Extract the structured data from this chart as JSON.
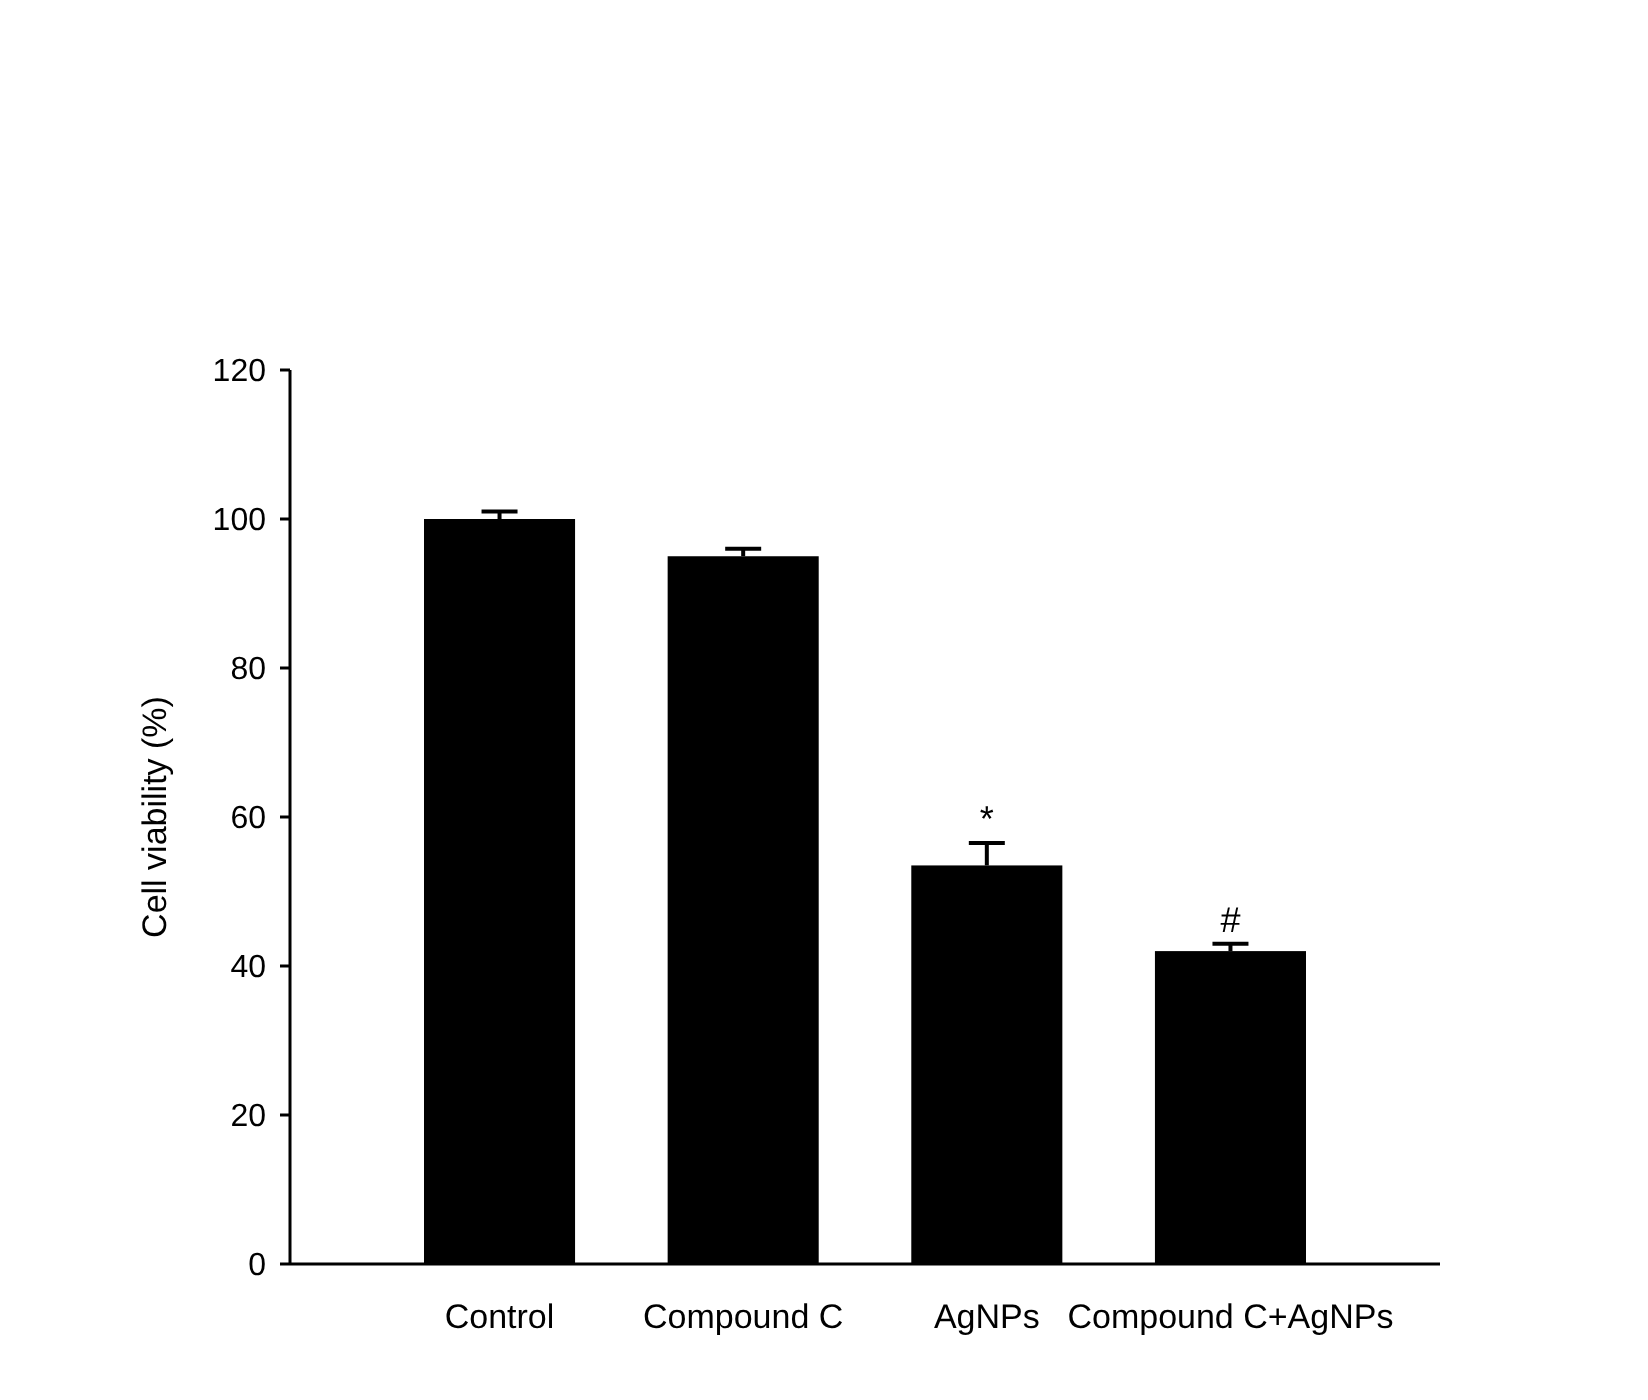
{
  "chart_data": {
    "type": "bar",
    "ylabel": "Cell viability (%)",
    "categories": [
      "Control",
      "Compound C",
      "AgNPs",
      "Compound C+AgNPs"
    ],
    "values": [
      100,
      95,
      53.5,
      42
    ],
    "errors": [
      1,
      1,
      3,
      1
    ],
    "color": "#000000",
    "ylim": [
      0,
      120
    ],
    "yticks": [
      0,
      20,
      40,
      60,
      80,
      100,
      120
    ],
    "grid": false,
    "annotations": [
      {
        "text": "*",
        "x": "AgNPs",
        "y": 56.5
      },
      {
        "text": "#",
        "x": "Compound C+AgNPs",
        "y": 43
      }
    ]
  }
}
